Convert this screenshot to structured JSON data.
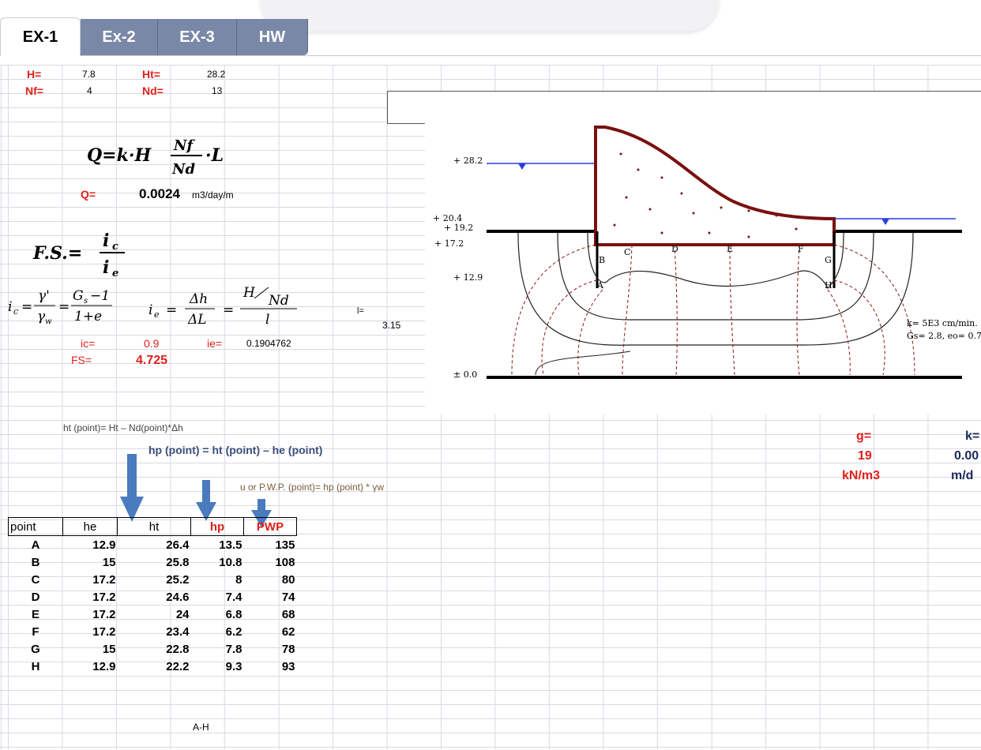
{
  "tabs": [
    {
      "label": "EX-1",
      "active": true
    },
    {
      "label": "Ex-2",
      "active": false
    },
    {
      "label": "EX-3",
      "active": false
    },
    {
      "label": "HW",
      "active": false
    }
  ],
  "inputs": {
    "H_label": "H=",
    "H_value": "7.8",
    "Ht_label": "Ht=",
    "Ht_value": "28.2",
    "Nf_label": "Nf=",
    "Nf_value": "4",
    "Nd_label": "Nd=",
    "Nd_value": "13"
  },
  "flow": {
    "Q_label": "Q=",
    "Q_value": "0.0024",
    "Q_unit": "m3/day/m"
  },
  "safety": {
    "ic_label": "ic=",
    "ic_value": "0.9",
    "ie_label": "ie=",
    "ie_value": "0.1904762",
    "FS_label": "FS=",
    "FS_value": "4.725",
    "l_label": "l=",
    "l_value": "3.15"
  },
  "notes": {
    "ht_note": "ht (point)= Ht – Nd(point)*Δh",
    "hp_note": "hp (point) = ht (point) – he (point)",
    "u_note": "u or P.W.P. (point)= hp (point) * γw"
  },
  "side_params": {
    "g_label": "g=",
    "g_value": "19",
    "g_unit": "kN/m3",
    "k_label": "k=",
    "k_value": "0.00",
    "k_unit": "m/d"
  },
  "footer": {
    "range_label": "A-H"
  },
  "diagram": {
    "elev_282": "+ 28.2",
    "elev_204": "+ 20.4",
    "elev_192": "+ 19.2",
    "elev_172": "+ 17.2",
    "elev_129": "+ 12.9",
    "elev_00": "± 0.0",
    "points": [
      "A",
      "B",
      "C",
      "D",
      "E",
      "F",
      "G",
      "H"
    ],
    "soil_note_1": "k= 5E3 cm/min.",
    "soil_note_2": "Gs= 2.8, eo= 0.7"
  },
  "table": {
    "headers": [
      "point",
      "he",
      "ht",
      "hp",
      "PWP"
    ],
    "rows": [
      {
        "point": "A",
        "he": "12.9",
        "ht": "26.4",
        "hp": "13.5",
        "pwp": "135"
      },
      {
        "point": "B",
        "he": "15",
        "ht": "25.8",
        "hp": "10.8",
        "pwp": "108"
      },
      {
        "point": "C",
        "he": "17.2",
        "ht": "25.2",
        "hp": "8",
        "pwp": "80"
      },
      {
        "point": "D",
        "he": "17.2",
        "ht": "24.6",
        "hp": "7.4",
        "pwp": "74"
      },
      {
        "point": "E",
        "he": "17.2",
        "ht": "24",
        "hp": "6.8",
        "pwp": "68"
      },
      {
        "point": "F",
        "he": "17.2",
        "ht": "23.4",
        "hp": "6.2",
        "pwp": "62"
      },
      {
        "point": "G",
        "he": "15",
        "ht": "22.8",
        "hp": "7.8",
        "pwp": "78"
      },
      {
        "point": "H",
        "he": "12.9",
        "ht": "22.2",
        "hp": "9.3",
        "pwp": "93"
      }
    ]
  },
  "colors": {
    "accent_red": "#e0201a",
    "tab_bg": "#7a88a8",
    "arrow_blue": "#4a7bbf",
    "dam_red": "#7a1010",
    "note_blue": "#3a4e7a"
  }
}
